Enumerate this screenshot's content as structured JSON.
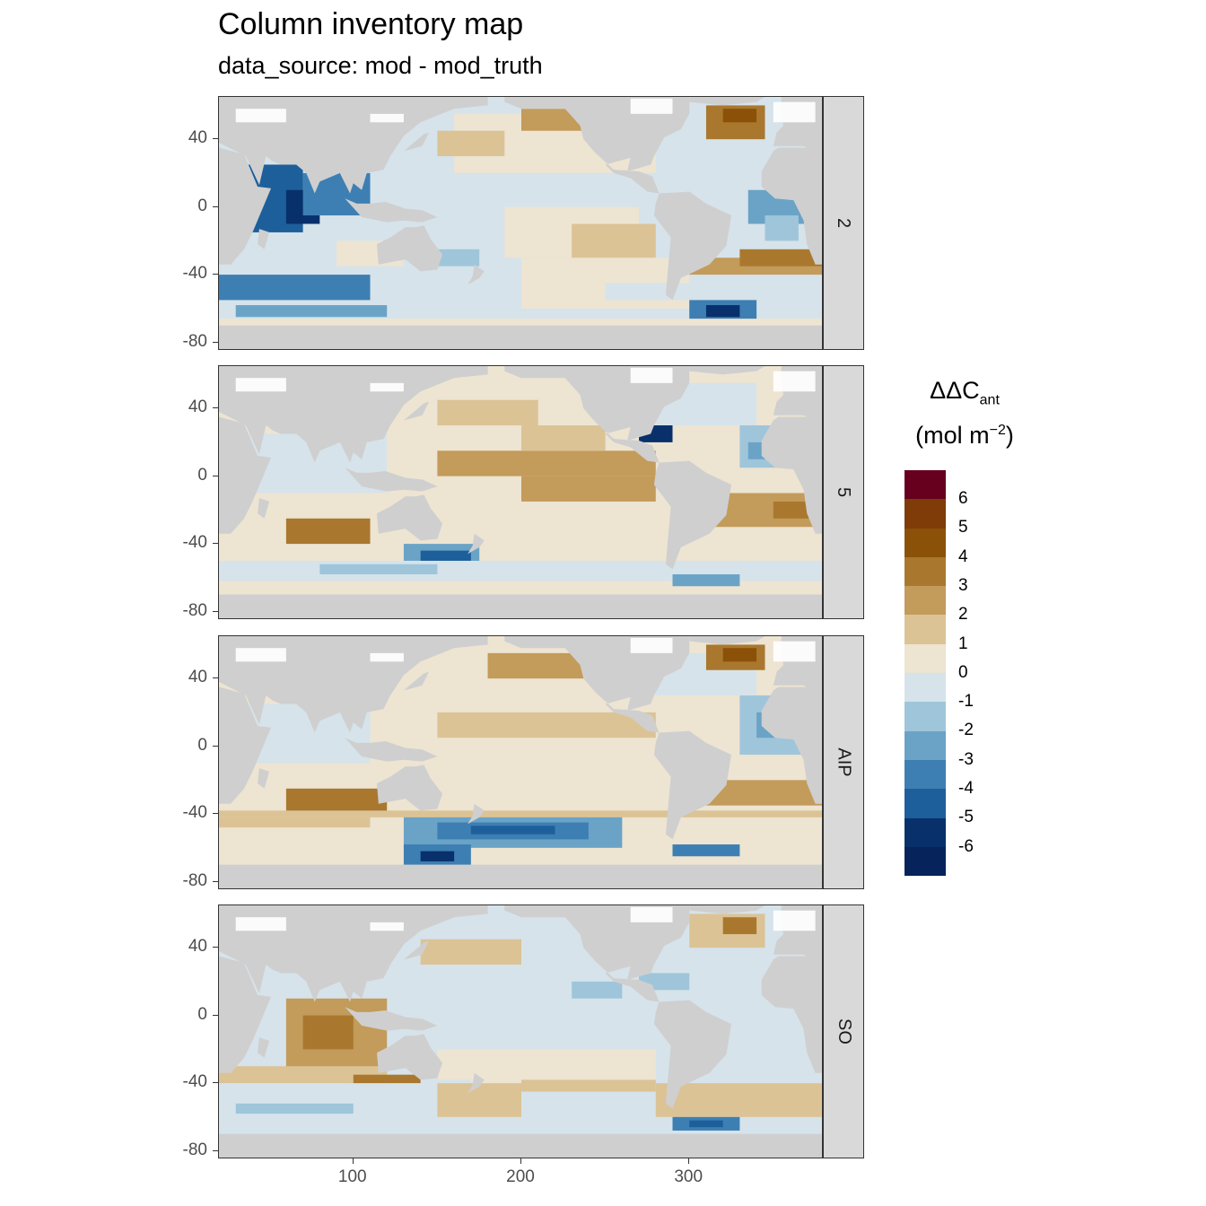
{
  "title": "Column inventory map",
  "subtitle": "data_source: mod - mod_truth",
  "panels": [
    {
      "label": "2"
    },
    {
      "label": "5"
    },
    {
      "label": "AIP"
    },
    {
      "label": "SO"
    }
  ],
  "y_ticks": [
    "40",
    "0",
    "-40",
    "-80"
  ],
  "x_ticks": [
    "100",
    "200",
    "300"
  ],
  "legend": {
    "title_main": "ΔΔC",
    "title_sub": "ant",
    "unit_main": "(mol m",
    "unit_sup": "−2",
    "unit_close": ")",
    "labels": [
      "6",
      "5",
      "4",
      "3",
      "2",
      "1",
      "0",
      "-1",
      "-2",
      "-3",
      "-4",
      "-5",
      "-6"
    ],
    "colors": [
      "#67001f",
      "#7f3b08",
      "#8c5109",
      "#a9782e",
      "#c39b5a",
      "#dcc396",
      "#ede4d2",
      "#d6e3ea",
      "#9fc5da",
      "#6aa3c6",
      "#3d7fb3",
      "#1d5f9a",
      "#08306b",
      "#06235b"
    ]
  },
  "chart_data": {
    "type": "heatmap",
    "title": "Column inventory map",
    "subtitle": "data_source: mod - mod_truth",
    "facets": [
      "2",
      "5",
      "AIP",
      "SO"
    ],
    "xlim": [
      20,
      380
    ],
    "ylim": [
      -85,
      65
    ],
    "x_ticks": [
      100,
      200,
      300
    ],
    "y_ticks": [
      40,
      0,
      -40,
      -80
    ],
    "fill_scale": {
      "name": "ΔΔCant (mol m-2)",
      "breaks": [
        6,
        5,
        4,
        3,
        2,
        1,
        0,
        -1,
        -2,
        -3,
        -4,
        -5,
        -6
      ],
      "palette": "brown-white-blue diverging"
    }
  }
}
